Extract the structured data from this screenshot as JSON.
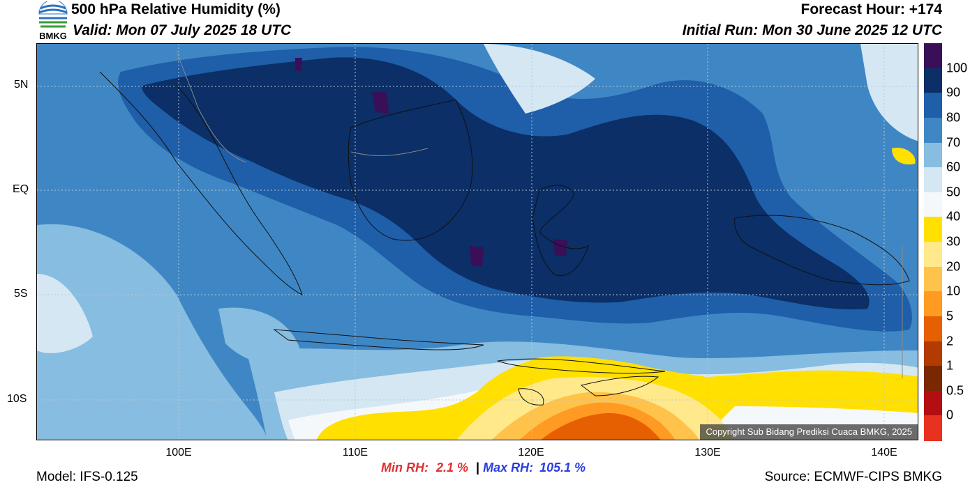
{
  "header": {
    "title": "500 hPa Relative Humidity (%)",
    "valid": "Valid: Mon 07 July 2025 18 UTC",
    "forecast_hour": "Forecast Hour: +174",
    "initial_run": "Initial Run: Mon 30 June 2025 12 UTC",
    "logo_text": "BMKG"
  },
  "axes": {
    "lat_labels": [
      "5N",
      "EQ",
      "5S",
      "10S"
    ],
    "lon_labels": [
      "100E",
      "110E",
      "120E",
      "130E",
      "140E"
    ]
  },
  "colorbar": {
    "labels": [
      "100",
      "90",
      "80",
      "70",
      "60",
      "50",
      "40",
      "30",
      "20",
      "10",
      "5",
      "2",
      "1",
      "0.5",
      "0"
    ],
    "colors": [
      "#3a0f57",
      "#0b2f66",
      "#1f5ea8",
      "#3f87c4",
      "#86bde0",
      "#d4e7f3",
      "#f5f8fa",
      "#ffe000",
      "#ffe98a",
      "#ffc24a",
      "#ff9a22",
      "#e65f00",
      "#b33a00",
      "#7a2800",
      "#b30f13",
      "#e8321f"
    ]
  },
  "map": {
    "copyright": "Copyright Sub Bidang Prediksi Cuaca BMKG, 2025",
    "colors": {
      "rh90": "#0b2f66",
      "rh80": "#1f5ea8",
      "rh70": "#3f87c4",
      "rh60": "#86bde0",
      "rh50": "#d4e7f3",
      "rh40": "#f5f8fa",
      "rh30": "#ffe000",
      "rh20": "#ffe98a",
      "rh10": "#ffc24a",
      "rh5": "#ff9a22",
      "rh2": "#e65f00",
      "rh100": "#3a0f57"
    }
  },
  "footer": {
    "model": "Model: IFS-0.125",
    "min_label": "Min RH:",
    "min_value": "2.1 %",
    "separator": "|",
    "max_label": "Max RH:",
    "max_value": "105.1 %",
    "source": "Source: ECMWF-CIPS BMKG"
  }
}
